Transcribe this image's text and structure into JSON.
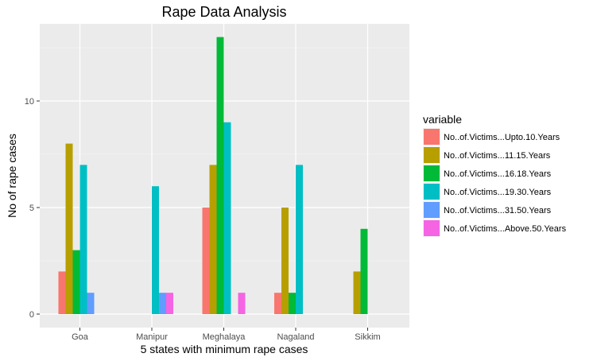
{
  "chart_data": {
    "type": "bar",
    "title": "Rape Data Analysis",
    "xlabel": "5 states with minimum rape cases",
    "ylabel": "No of rape cases",
    "categories": [
      "Goa",
      "Manipur",
      "Meghalaya",
      "Nagaland",
      "Sikkim"
    ],
    "ylim": [
      0,
      13.65
    ],
    "yticks": [
      0,
      5,
      10
    ],
    "grid": true,
    "legend": {
      "title": "variable",
      "position": "right"
    },
    "series": [
      {
        "name": "No..of.Victims...Upto.10.Years",
        "color": "#F8766D",
        "values": [
          2,
          0,
          5,
          1,
          0
        ]
      },
      {
        "name": "No..of.Victims...11.15.Years",
        "color": "#B79F00",
        "values": [
          8,
          0,
          7,
          5,
          2
        ]
      },
      {
        "name": "No..of.Victims...16.18.Years",
        "color": "#00BA38",
        "values": [
          3,
          0,
          13,
          1,
          4
        ]
      },
      {
        "name": "No..of.Victims...19.30.Years",
        "color": "#00BFC4",
        "values": [
          7,
          6,
          9,
          7,
          0
        ]
      },
      {
        "name": "No..of.Victims...31.50.Years",
        "color": "#619CFF",
        "values": [
          1,
          1,
          0,
          0,
          0
        ]
      },
      {
        "name": "No..of.Victims...Above.50.Years",
        "color": "#F564E3",
        "values": [
          0,
          1,
          1,
          0,
          0
        ]
      }
    ]
  }
}
